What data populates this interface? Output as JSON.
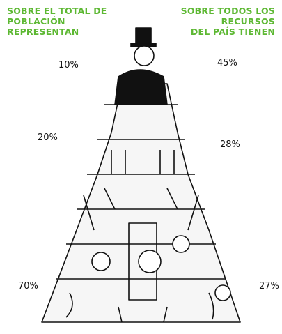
{
  "header": {
    "left": [
      "SOBRE EL TOTAL DE",
      "POBLACIÓN",
      "REPRESENTAN"
    ],
    "right": [
      "SOBRE TODOS LOS",
      "RECURSOS",
      "DEL PAÍS TIENEN"
    ]
  },
  "levels": [
    {
      "population": "10%",
      "resources": "45%"
    },
    {
      "population": "20%",
      "resources": "28%"
    },
    {
      "population": "70%",
      "resources": "27%"
    }
  ]
}
